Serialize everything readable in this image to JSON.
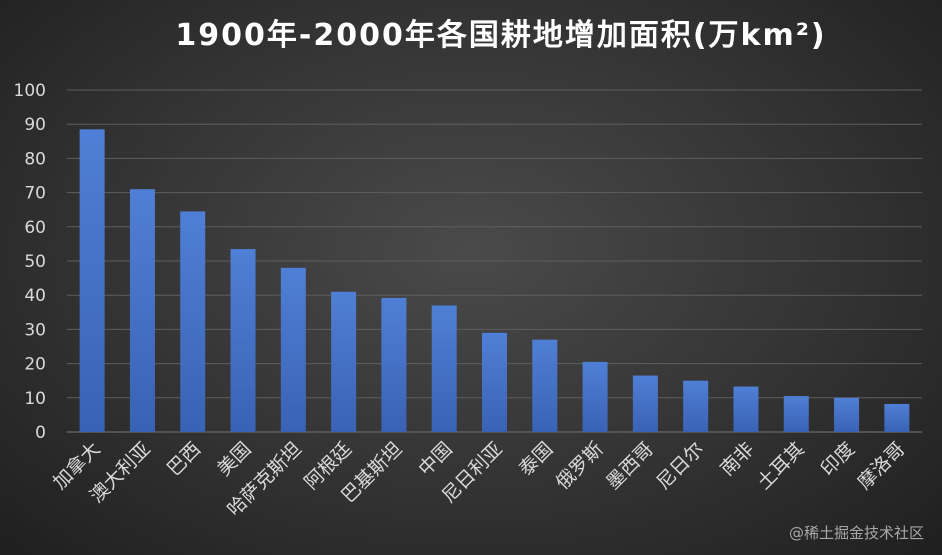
{
  "colors": {
    "bar": "#4472c4",
    "grid": "#5e5e5e",
    "text": "#d9d9d9"
  },
  "chart_data": {
    "type": "bar",
    "title": "1900年-2000年各国耕地增加面积(万km²)",
    "categories": [
      "加拿大",
      "澳大利亚",
      "巴西",
      "美国",
      "哈萨克斯坦",
      "阿根廷",
      "巴基斯坦",
      "中国",
      "尼日利亚",
      "泰国",
      "俄罗斯",
      "墨西哥",
      "尼日尔",
      "南非",
      "土耳其",
      "印度",
      "摩洛哥"
    ],
    "values": [
      88.5,
      71,
      64.5,
      53.5,
      48,
      41,
      39.2,
      37,
      29,
      27,
      20.5,
      16.5,
      15,
      13.3,
      10.5,
      10,
      8.2
    ],
    "yticks": [
      0,
      10,
      20,
      30,
      40,
      50,
      60,
      70,
      80,
      90,
      100
    ],
    "ylim": [
      0,
      100
    ],
    "grid": true
  },
  "watermark": "@稀土掘金技术社区"
}
